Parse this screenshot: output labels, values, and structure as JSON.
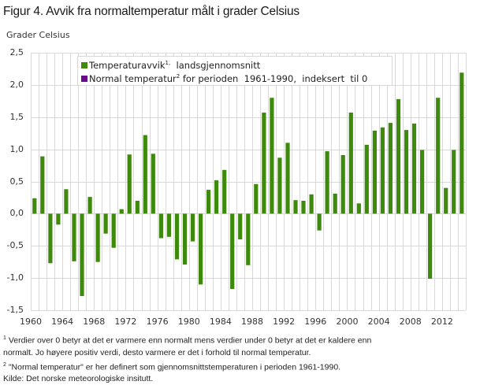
{
  "title": "Figur 4. Avvik fra normaltemperatur målt i grader Celsius",
  "y_unit_label": "Grader  Celsius",
  "legend": {
    "items": [
      {
        "label_main": "Temperaturavvik",
        "sup": "1,",
        "label_rest": "  landsgjennomsnitt",
        "color": "#3e8a0c"
      },
      {
        "label_main": "Normal temperatur",
        "sup": "2",
        "label_rest": " for perioden  1961-1990,  indeksert  til 0",
        "color": "#6c0a8e"
      }
    ]
  },
  "y_ticks": [
    "2,5",
    "2,0",
    "1,5",
    "1,0",
    "0,5",
    "0,0",
    "-0,5",
    "-1,0",
    "-1,5"
  ],
  "x_ticks": [
    "1960",
    "1964",
    "1968",
    "1972",
    "1976",
    "1980",
    "1984",
    "1988",
    "1992",
    "1996",
    "2000",
    "2004",
    "2008",
    "2012"
  ],
  "notes": {
    "note1_sup": "1",
    "note1_line1": " Verdier over 0 betyr at det er varmere enn normalt mens verdier under 0 betyr at det er kaldere enn",
    "note1_line2": "normalt. Jo høyere positiv verdi, desto varmere er det i forhold  til normal temperatur.",
    "note2_sup": "2",
    "note2": " \"Normal temperatur\" er her definert som gjennomsnittstemperaturen i perioden 1961-1990.",
    "source": "Kilde: Det norske meteorologiske insitutt."
  },
  "colors": {
    "bar": "#3e8a0c",
    "normal": "#6c0a8e",
    "grid": "#d9d9d9"
  },
  "chart_data": {
    "type": "bar",
    "title": "Figur 4. Avvik fra normaltemperatur målt i grader Celsius",
    "xlabel": "",
    "ylabel": "Grader  Celsius",
    "ylim": [
      -1.5,
      2.5
    ],
    "grid": true,
    "legend_position": "top-left inside",
    "categories": [
      1960,
      1961,
      1962,
      1963,
      1964,
      1965,
      1966,
      1967,
      1968,
      1969,
      1970,
      1971,
      1972,
      1973,
      1974,
      1975,
      1976,
      1977,
      1978,
      1979,
      1980,
      1981,
      1982,
      1983,
      1984,
      1985,
      1986,
      1987,
      1988,
      1989,
      1990,
      1991,
      1992,
      1993,
      1994,
      1995,
      1996,
      1997,
      1998,
      1999,
      2000,
      2001,
      2002,
      2003,
      2004,
      2005,
      2006,
      2007,
      2008,
      2009,
      2010,
      2011,
      2012,
      2013,
      2014
    ],
    "series": [
      {
        "name": "Temperaturavvik, landsgjennomsnitt",
        "values": [
          0.24,
          0.89,
          -0.77,
          -0.17,
          0.38,
          -0.74,
          -1.28,
          0.26,
          -0.75,
          -0.31,
          -0.53,
          0.07,
          0.92,
          0.2,
          1.22,
          0.93,
          -0.38,
          -0.36,
          -0.71,
          -0.79,
          -0.43,
          -1.1,
          0.37,
          0.52,
          0.68,
          -1.17,
          -0.4,
          -0.8,
          0.46,
          1.57,
          1.8,
          0.87,
          1.1,
          0.21,
          0.2,
          0.3,
          -0.26,
          0.97,
          0.31,
          0.91,
          1.57,
          0.16,
          1.07,
          1.29,
          1.34,
          1.41,
          1.78,
          1.3,
          1.4,
          0.99,
          -1.01,
          1.8,
          0.4,
          0.99,
          2.19
        ]
      },
      {
        "name": "Normal temperatur for perioden 1961-1990, indeksert til 0",
        "values": [
          0,
          0,
          0,
          0,
          0,
          0,
          0,
          0,
          0,
          0,
          0,
          0,
          0,
          0,
          0,
          0,
          0,
          0,
          0,
          0,
          0,
          0,
          0,
          0,
          0,
          0,
          0,
          0,
          0,
          0,
          0,
          0,
          0,
          0,
          0,
          0,
          0,
          0,
          0,
          0,
          0,
          0,
          0,
          0,
          0,
          0,
          0,
          0,
          0,
          0,
          0,
          0,
          0,
          0,
          0
        ]
      }
    ]
  }
}
